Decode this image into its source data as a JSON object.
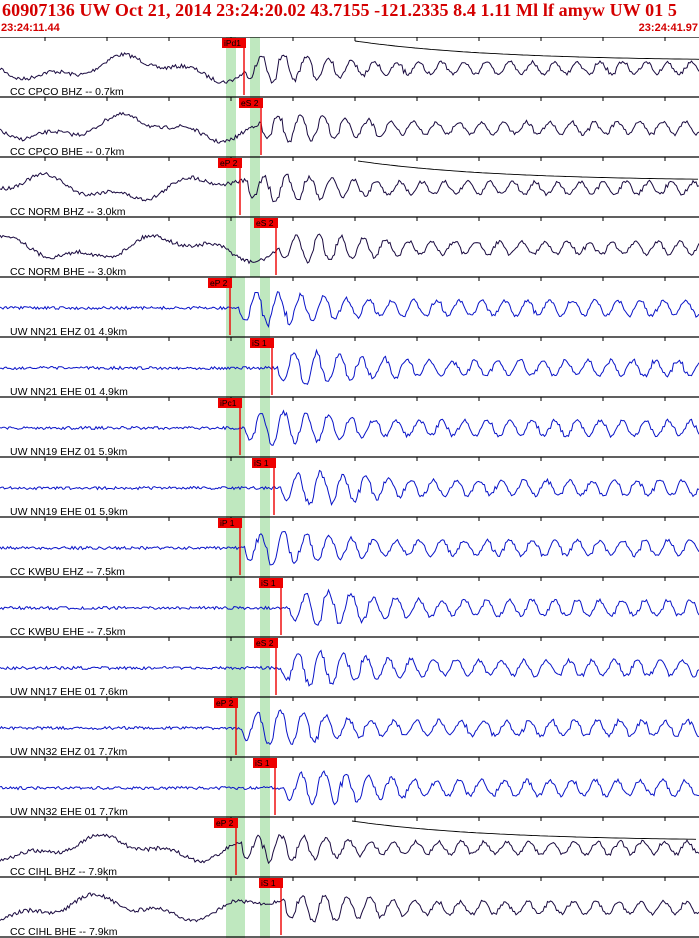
{
  "header": {
    "title": "60907136 UW Oct 21, 2014 23:24:20.02   43.7155 -121.2335  8.4 1.11 Ml lf amyw UW 01   5",
    "start_time": "23:24:11.44",
    "end_time": "23:24:41.97"
  },
  "colors": {
    "header_text": "#d40000",
    "pick": "#ee0000",
    "highlight": "#bfe8bf",
    "trace_cc": "#1a0a40",
    "trace_uw": "#0a14c8",
    "border": "#000000"
  },
  "chart_data": {
    "type": "line",
    "x_unit": "time",
    "xlim": [
      "23:24:11.44",
      "23:24:41.97"
    ],
    "title": "60907136 UW Oct 21, 2014 23:24:20.02   43.7155 -121.2335  8.4 1.11 Ml lf amyw UW 01   5",
    "series": [
      {
        "label": "CC CPCO BHZ -- 0.7km",
        "pick": "iPd1",
        "net": "CC",
        "decay": true
      },
      {
        "label": "CC CPCO BHE -- 0.7km",
        "pick": "eS 2",
        "net": "CC"
      },
      {
        "label": "CC NORM BHZ -- 3.0km",
        "pick": "eP 2",
        "net": "CC",
        "decay": true
      },
      {
        "label": "CC NORM BHE -- 3.0km",
        "pick": "eS 2",
        "net": "CC"
      },
      {
        "label": "UW NN21 EHZ 01 4.9km",
        "pick": "eP 2",
        "net": "UW"
      },
      {
        "label": "UW NN21 EHE 01 4.9km",
        "pick": "iS 1",
        "net": "UW"
      },
      {
        "label": "UW NN19 EHZ 01 5.9km",
        "pick": "iPc1",
        "net": "UW"
      },
      {
        "label": "UW NN19 EHE 01 5.9km",
        "pick": "iS 1",
        "net": "UW"
      },
      {
        "label": "CC KWBU EHZ -- 7.5km",
        "pick": "iP 1",
        "net": "UW"
      },
      {
        "label": "CC KWBU EHE -- 7.5km",
        "pick": "iS 1",
        "net": "UW"
      },
      {
        "label": "UW NN17 EHE 01 7.6km",
        "pick": "eS 2",
        "net": "UW"
      },
      {
        "label": "UW NN32 EHZ 01 7.7km",
        "pick": "eP 2",
        "net": "UW"
      },
      {
        "label": "UW NN32 EHE 01 7.7km",
        "pick": "iS 1",
        "net": "UW"
      },
      {
        "label": "CC CIHL BHZ -- 7.9km",
        "pick": "eP 2",
        "net": "CC",
        "decay": true
      },
      {
        "label": "CC CIHL BHE -- 7.9km",
        "pick": "iS 1",
        "net": "CC"
      }
    ]
  }
}
